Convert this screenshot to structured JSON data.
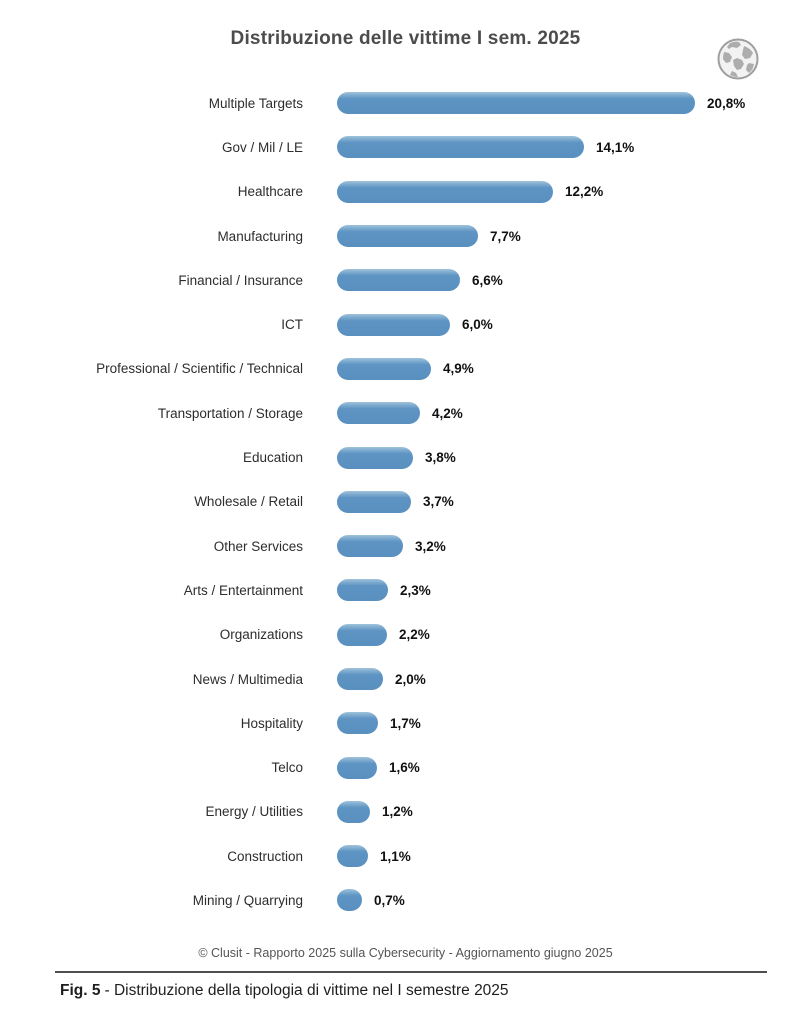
{
  "title": "Distribuzione delle vittime I sem. 2025",
  "footer": "© Clusit - Rapporto 2025 sulla Cybersecurity - Aggiornamento giugno 2025",
  "caption": {
    "label": "Fig. 5",
    "text": "- Distribuzione della tipologia di vittime nel I semestre 2025"
  },
  "icons": {
    "header_icon": "globe-icon"
  },
  "colors": {
    "bar": "#5e94c3",
    "title_text": "#4c4c4c",
    "value_text": "#111111",
    "footer_text": "#555555"
  },
  "chart_data": {
    "type": "bar",
    "orientation": "horizontal",
    "title": "Distribuzione delle vittime I sem. 2025",
    "xlabel": "",
    "ylabel": "",
    "xlim": [
      0,
      22
    ],
    "grid": false,
    "legend": false,
    "categories": [
      "Multiple Targets",
      "Gov / Mil / LE",
      "Healthcare",
      "Manufacturing",
      "Financial / Insurance",
      "ICT",
      "Professional / Scientific / Technical",
      "Transportation / Storage",
      "Education",
      "Wholesale / Retail",
      "Other Services",
      "Arts / Entertainment",
      "Organizations",
      "News / Multimedia",
      "Hospitality",
      "Telco",
      "Energy / Utilities",
      "Construction",
      "Mining / Quarrying"
    ],
    "values": [
      20.8,
      14.1,
      12.2,
      7.7,
      6.6,
      6.0,
      4.9,
      4.2,
      3.8,
      3.7,
      3.2,
      2.3,
      2.2,
      2.0,
      1.7,
      1.6,
      1.2,
      1.1,
      0.7
    ],
    "value_labels": [
      "20,8%",
      "14,1%",
      "12,2%",
      "7,7%",
      "6,6%",
      "6,0%",
      "4,9%",
      "4,2%",
      "3,8%",
      "3,7%",
      "3,2%",
      "2,3%",
      "2,2%",
      "2,0%",
      "1,7%",
      "1,6%",
      "1,2%",
      "1,1%",
      "0,7%"
    ]
  }
}
